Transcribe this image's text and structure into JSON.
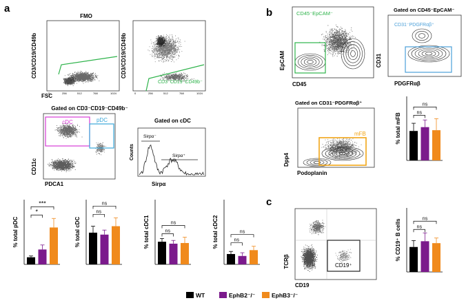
{
  "panels": {
    "a": "a",
    "b": "b",
    "c": "c"
  },
  "colors": {
    "wt": "#000000",
    "ephb2": "#7b1a8c",
    "ephb3": "#f08a1c",
    "gate_green": "#2db34a",
    "gate_magenta": "#d63bd6",
    "gate_cyan": "#3aa6d8",
    "gate_orange": "#f2a516",
    "gate_blue": "#4a9fd8"
  },
  "legend": [
    {
      "key": "wt",
      "label": "WT"
    },
    {
      "key": "ephb2",
      "label": "EphB2⁻/⁻"
    },
    {
      "key": "ephb3",
      "label": "EphB3⁻/⁻"
    }
  ],
  "flow": {
    "fmo": {
      "title": "FMO",
      "ylabel": "CD3/CD19/CD49b",
      "xlabel": "FSC",
      "xticks": [
        "0",
        "256",
        "512",
        "768",
        "1024"
      ]
    },
    "gate1": {
      "ylabel": "CD3/CD19/CD49b",
      "gate_label": "CD3⁻CD19⁻CD49b⁻",
      "xticks": [
        "0",
        "256",
        "512",
        "768",
        "1024"
      ]
    },
    "dc": {
      "title": "Gated on CD3⁻CD19⁻CD49b⁻",
      "ylabel": "CD11c",
      "xlabel": "PDCA1",
      "gate_cdc": "cDC",
      "gate_pdc": "pDC"
    },
    "sirpa": {
      "title": "Gated on cDC",
      "ylabel": "Counts",
      "xlabel": "Sirpα",
      "neg": "Sirpα⁻",
      "pos": "Sirpα⁺"
    },
    "b1": {
      "gate_label": "CD45⁻EpCAM⁻",
      "ylabel": "EpCAM",
      "xlabel": "CD45"
    },
    "b2": {
      "title": "Gated on CD45⁻EpCAM⁻",
      "gate_label": "CD31⁻PDGFRαβ⁺",
      "ylabel": "CD31",
      "xlabel": "PDGFRαβ"
    },
    "b3": {
      "title": "Gated on CD31⁻PDGFRαβ⁺",
      "gate_label": "mFB",
      "ylabel": "Dpp4",
      "xlabel": "Podoplanin"
    },
    "c1": {
      "gate_label": "CD19⁺",
      "ylabel": "TCRβ",
      "xlabel": "CD19"
    }
  },
  "chart_data": [
    {
      "id": "pdc",
      "type": "bar",
      "ylabel": "% total pDC",
      "ylim": [
        0,
        1
      ],
      "categories": [
        "WT",
        "EphB2⁻/⁻",
        "EphB3⁻/⁻"
      ],
      "values": [
        0.11,
        0.23,
        0.57
      ],
      "errors": [
        0.02,
        0.07,
        0.14
      ],
      "annotations": [
        {
          "from": 0,
          "to": 1,
          "label": "*"
        },
        {
          "from": 0,
          "to": 2,
          "label": "***"
        }
      ]
    },
    {
      "id": "cdc",
      "type": "bar",
      "ylabel": "% total cDC",
      "ylim": [
        0,
        1
      ],
      "categories": [
        "WT",
        "EphB2⁻/⁻",
        "EphB3⁻/⁻"
      ],
      "values": [
        0.49,
        0.46,
        0.59
      ],
      "errors": [
        0.1,
        0.07,
        0.13
      ],
      "annotations": [
        {
          "from": 0,
          "to": 1,
          "label": "ns"
        },
        {
          "from": 0,
          "to": 2,
          "label": "ns"
        }
      ]
    },
    {
      "id": "cdc1",
      "type": "bar",
      "ylabel": "% total cDC1",
      "ylim": [
        0,
        1
      ],
      "categories": [
        "WT",
        "EphB2⁻/⁻",
        "EphB3⁻/⁻"
      ],
      "values": [
        0.35,
        0.32,
        0.33
      ],
      "errors": [
        0.05,
        0.05,
        0.09
      ],
      "annotations": [
        {
          "from": 0,
          "to": 1,
          "label": "ns"
        },
        {
          "from": 0,
          "to": 2,
          "label": "ns"
        }
      ]
    },
    {
      "id": "cdc2",
      "type": "bar",
      "ylabel": "% total cDC2",
      "ylim": [
        0,
        1
      ],
      "categories": [
        "WT",
        "EphB2⁻/⁻",
        "EphB3⁻/⁻"
      ],
      "values": [
        0.16,
        0.13,
        0.22
      ],
      "errors": [
        0.04,
        0.05,
        0.06
      ],
      "annotations": [
        {
          "from": 0,
          "to": 1,
          "label": "ns"
        },
        {
          "from": 0,
          "to": 2,
          "label": "ns"
        }
      ]
    },
    {
      "id": "mfb",
      "type": "bar",
      "ylabel": "% total mFB",
      "ylim": [
        0,
        2.5
      ],
      "categories": [
        "WT",
        "EphB2⁻/⁻",
        "EphB3⁻/⁻"
      ],
      "values": [
        1.15,
        1.3,
        1.18
      ],
      "errors": [
        0.3,
        0.28,
        0.45
      ],
      "annotations": [
        {
          "from": 0,
          "to": 1,
          "label": "ns"
        },
        {
          "from": 0,
          "to": 2,
          "label": "ns"
        }
      ]
    },
    {
      "id": "bcells",
      "type": "bar",
      "ylabel": "% CD19⁺ B cells",
      "ylim": [
        0,
        1
      ],
      "categories": [
        "WT",
        "EphB2⁻/⁻",
        "EphB3⁻/⁻"
      ],
      "values": [
        0.39,
        0.48,
        0.45
      ],
      "errors": [
        0.1,
        0.13,
        0.08
      ],
      "annotations": [
        {
          "from": 0,
          "to": 1,
          "label": "ns"
        },
        {
          "from": 0,
          "to": 2,
          "label": "ns"
        }
      ]
    }
  ]
}
